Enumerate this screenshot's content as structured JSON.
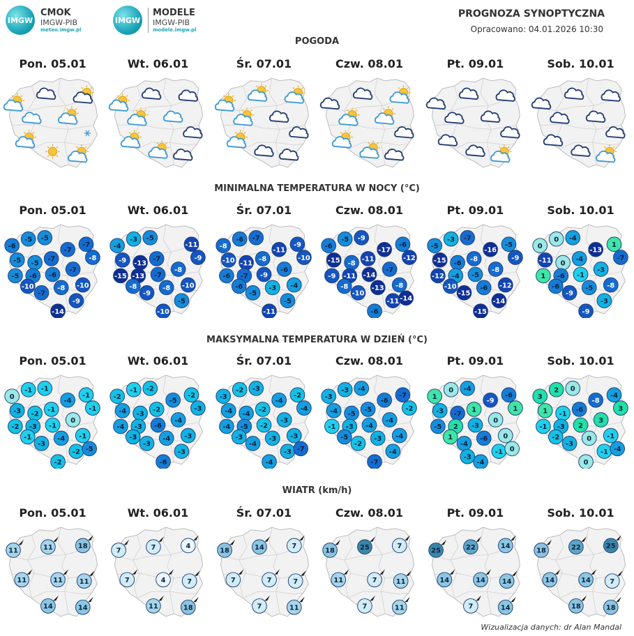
{
  "header": {
    "logo1": {
      "disc": "IMGW",
      "line1": "CMOK",
      "line2": "IMGW-PIB",
      "line3": "meteo.imgw.pl"
    },
    "logo2": {
      "disc": "IMGW",
      "line1": "MODELE",
      "line2": "IMGW-PIB",
      "line3": "modele.imgw.pl"
    },
    "title": "PROGNOZA SYNOPTYCZNA",
    "subtitle": "Opracowano: 04.01.2026 10:30"
  },
  "days": [
    "Pon. 05.01",
    "Wt. 06.01",
    "Śr. 07.01",
    "Czw. 08.01",
    "Pt. 09.01",
    "Sob. 10.01"
  ],
  "sections": {
    "weather": "POGODA",
    "tmin": "MINIMALNA TEMPERATURA W NOCY (°C)",
    "tmax": "MAKSYMALNA TEMPERATURA W DZIEŃ (°C)",
    "wind": "WIATR (km/h)"
  },
  "weather_icons": [
    [
      "sun-cloud",
      "cloud-dark",
      "sun-cloud-dark",
      "cloud",
      "sun-cloud",
      "snow",
      "sun-cloud",
      "sun",
      "sun-cloud"
    ],
    [
      "sun-cloud",
      "cloud-dark",
      "cloud-dark",
      "sun-cloud",
      "cloud",
      "cloud-dark",
      "sun-cloud",
      "sun-cloud",
      "cloud-dark"
    ],
    [
      "sun-cloud",
      "sun-cloud",
      "sun-cloud",
      "sun-cloud",
      "cloud-dark",
      "cloud-dark",
      "sun-cloud",
      "cloud-dark",
      "cloud-dark"
    ],
    [
      "cloud-dark",
      "cloud-dark",
      "sun-cloud",
      "sun-cloud",
      "sun-cloud",
      "cloud-dark",
      "sun-cloud",
      "sun-cloud",
      "cloud-dark"
    ],
    [
      "cloud-dark",
      "cloud-dark",
      "cloud-dark",
      "cloud-dark",
      "cloud-dark",
      "cloud-dark",
      "cloud-dark",
      "cloud-dark",
      "sun-cloud"
    ],
    [
      "cloud-dark",
      "cloud-dark",
      "cloud-dark",
      "cloud-dark",
      "cloud-dark",
      "cloud-dark",
      "cloud-dark",
      "cloud-dark",
      "sun-cloud"
    ]
  ],
  "tmin": [
    [
      "-6",
      "-5",
      "-5",
      "-7",
      "-7",
      "-8",
      "-5",
      "-5",
      "-7",
      "-5",
      "-6",
      "-6",
      "-7",
      "-10",
      "-7",
      "-8",
      "-10",
      "-9",
      "-14"
    ],
    [
      "-4",
      "-3",
      "-5",
      "-11",
      "-9",
      "-9",
      "-13",
      "-7",
      "-8",
      "-15",
      "-13",
      "-7",
      "-8",
      "-9",
      "-8",
      "-10",
      "-5",
      "-10"
    ],
    [
      "-8",
      "-6",
      "-7",
      "-11",
      "-9",
      "-10",
      "-10",
      "-11",
      "-8",
      "-6",
      "-7",
      "-9",
      "-6",
      "-6",
      "-5",
      "-3",
      "-4",
      "-5",
      "-11"
    ],
    [
      "-6",
      "-5",
      "-9",
      "-17",
      "-6",
      "-12",
      "-15",
      "-8",
      "-11",
      "-7",
      "-9",
      "-11",
      "-14",
      "-8",
      "-10",
      "-13",
      "-8",
      "-11",
      "-6",
      "-14"
    ],
    [
      "-5",
      "-3",
      "-7",
      "-16",
      "-5",
      "-9",
      "-15",
      "-6",
      "-8",
      "-12",
      "-4",
      "-5",
      "-8",
      "-10",
      "-15",
      "-6",
      "-12",
      "-14",
      "-15"
    ],
    [
      "0",
      "0",
      "-4",
      "-13",
      "1",
      "-7",
      "-11",
      "0",
      "-4",
      "1",
      "-6",
      "-1",
      "-3",
      "-6",
      "-9",
      "-5",
      "-8",
      "-3",
      "-9"
    ]
  ],
  "tmax": [
    [
      "0",
      "-1",
      "-1",
      "-4",
      "-1",
      "-1",
      "-3",
      "-2",
      "-1",
      "0",
      "-2",
      "-3",
      "-1",
      "-1",
      "-3",
      "-4",
      "-1",
      "-2",
      "-2",
      "-5"
    ],
    [
      "-2",
      "-1",
      "-2",
      "-5",
      "-2",
      "-3",
      "-4",
      "-3",
      "-2",
      "-4",
      "-3",
      "-6",
      "-4",
      "-3",
      "-3",
      "-4",
      "-3",
      "-3",
      "-6"
    ],
    [
      "-3",
      "-2",
      "-3",
      "-4",
      "-2",
      "-4",
      "-4",
      "-4",
      "-2",
      "-3",
      "-4",
      "-5",
      "-2",
      "-3",
      "-4",
      "-3",
      "-3",
      "-3",
      "-4",
      "-7"
    ],
    [
      "-3",
      "-3",
      "-4",
      "-6",
      "-7",
      "-2",
      "-4",
      "-5",
      "-5",
      "-1",
      "-3",
      "-4",
      "-4",
      "-5",
      "-2",
      "-3",
      "-4",
      "-4",
      "-7"
    ],
    [
      "1",
      "0",
      "-4",
      "-9",
      "-6",
      "1",
      "-3",
      "-7",
      "1",
      "0",
      "-5",
      "2",
      "-3",
      "1",
      "-4",
      "-6",
      "0",
      "-1",
      "-4",
      "0",
      "-3"
    ],
    [
      "3",
      "2",
      "0",
      "-8",
      "-4",
      "3",
      "1",
      "-1",
      "-6",
      "3",
      "-1",
      "-3",
      "2",
      "-2",
      "-3",
      "0",
      "-1",
      "-1",
      "0",
      "-4"
    ]
  ],
  "wind": [
    [
      "11",
      "11",
      "18",
      "11",
      "11",
      "11",
      "14",
      "14"
    ],
    [
      "7",
      "7",
      "4",
      "7",
      "4",
      "7",
      "11",
      "18"
    ],
    [
      "18",
      "14",
      "7",
      "7",
      "7",
      "7",
      "7",
      "11"
    ],
    [
      "18",
      "25",
      "7",
      "11",
      "7",
      "11",
      "7",
      "11"
    ],
    [
      "25",
      "22",
      "14",
      "14",
      "14",
      "14",
      "7",
      "14"
    ],
    [
      "18",
      "22",
      "25",
      "14",
      "14",
      "7",
      "18",
      "18"
    ]
  ],
  "footer": {
    "credit": "Wizualizacja danych: dr Alan Mandal"
  }
}
